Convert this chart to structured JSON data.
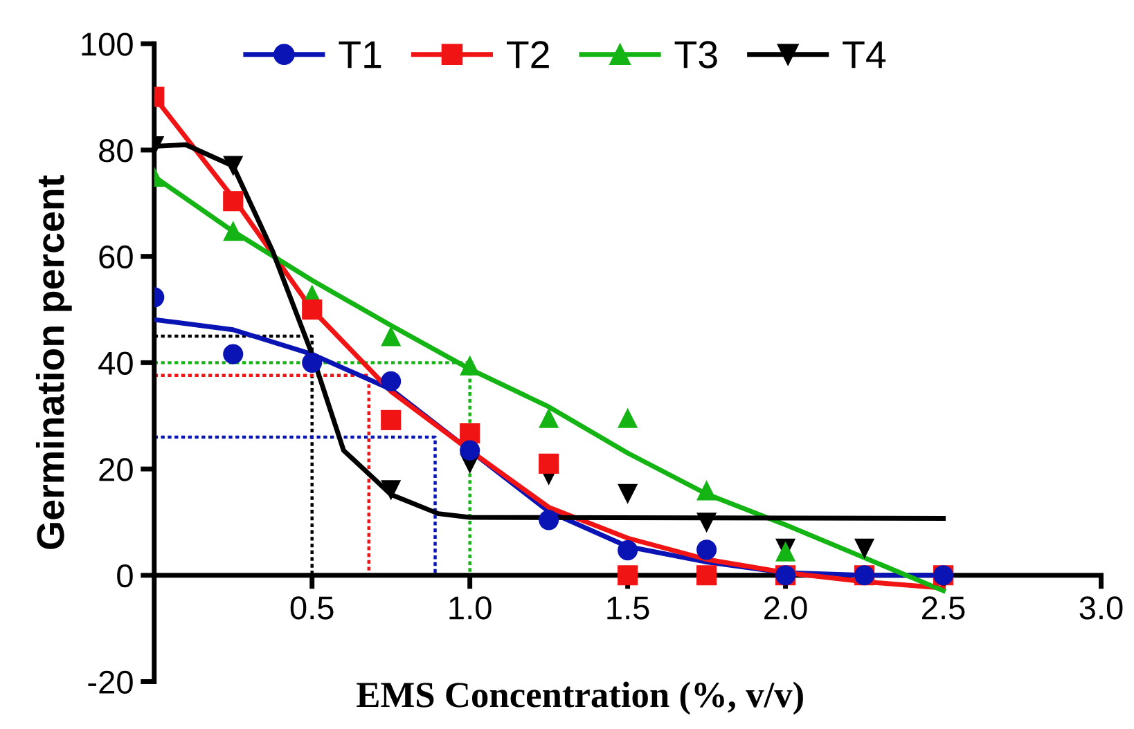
{
  "chart_data": {
    "type": "scatter",
    "xlabel": "EMS Concentration (%, v/v)",
    "ylabel": "Germination percent",
    "xlim": [
      0,
      3.0
    ],
    "ylim": [
      -20,
      100
    ],
    "xticks": [
      {
        "value": 0.5,
        "label": "0.5"
      },
      {
        "value": 1.0,
        "label": "1.0"
      },
      {
        "value": 1.5,
        "label": "1.5"
      },
      {
        "value": 2.0,
        "label": "2.0"
      },
      {
        "value": 2.5,
        "label": "2.5"
      },
      {
        "value": 3.0,
        "label": "3.0"
      }
    ],
    "yticks": [
      -20,
      0,
      20,
      40,
      60,
      80,
      100
    ],
    "grid": false,
    "legend": "top left",
    "series": [
      {
        "name": "T1",
        "marker": "circle",
        "color": "#0a14b4",
        "x": [
          0,
          0.25,
          0.5,
          0.75,
          1.0,
          1.25,
          1.5,
          1.75,
          2.0,
          2.25,
          2.5
        ],
        "values": [
          52.3,
          41.6,
          40,
          36.5,
          23.5,
          10.4,
          4.7,
          4.8,
          0,
          0,
          0
        ]
      },
      {
        "name": "T2",
        "marker": "square",
        "color": "#f01414",
        "x": [
          0,
          0.25,
          0.5,
          0.75,
          1.0,
          1.25,
          1.5,
          1.75,
          2.0,
          2.25,
          2.5
        ],
        "values": [
          90,
          70.4,
          50,
          29.2,
          26.7,
          21,
          0,
          0,
          0,
          0,
          0
        ]
      },
      {
        "name": "T3",
        "marker": "triangle",
        "color": "#14b414",
        "x": [
          0,
          0.25,
          0.5,
          0.75,
          1.0,
          1.25,
          1.5,
          1.75,
          2.0
        ],
        "values": [
          75,
          64.8,
          52.8,
          45,
          39.5,
          29.6,
          29.6,
          16,
          4.5
        ]
      },
      {
        "name": "T4",
        "marker": "triangle_down",
        "color": "#000000",
        "x": [
          0,
          0.25,
          0.75,
          1.0,
          1.25,
          1.5,
          1.75,
          2.0,
          2.25
        ],
        "values": [
          80.7,
          77,
          16,
          21,
          18.8,
          15.3,
          9.9,
          5,
          5
        ]
      },
      {
        "type": "line",
        "color": "#0a14b4",
        "x": [
          0,
          0.25,
          0.5,
          0.75,
          1.0,
          1.25,
          1.5,
          1.75,
          2.0,
          2.25,
          2.5
        ],
        "values": [
          48.1,
          46.2,
          41.6,
          35,
          23.5,
          12,
          5.4,
          2.5,
          0.5,
          0,
          0
        ]
      },
      {
        "type": "line",
        "color": "#f01414",
        "x": [
          0,
          0.25,
          0.5,
          0.75,
          1.0,
          1.25,
          1.5,
          1.75,
          2.0,
          2.25,
          2.5
        ],
        "values": [
          90,
          71,
          50,
          34.6,
          23.5,
          12.8,
          7,
          3,
          0.5,
          -1.2,
          -2.4
        ]
      },
      {
        "type": "line",
        "color": "#14b414",
        "x": [
          0,
          0.25,
          0.5,
          0.75,
          1.0,
          1.25,
          1.5,
          1.75,
          2.0,
          2.25,
          2.5
        ],
        "values": [
          75,
          64.7,
          55.5,
          47,
          38.8,
          31.7,
          23,
          15.3,
          9.5,
          3.3,
          -2.9
        ]
      },
      {
        "type": "line",
        "color": "#000000",
        "x": [
          0,
          0.1,
          0.25,
          0.375,
          0.5,
          0.6,
          0.75,
          0.9,
          1.0,
          2.5
        ],
        "values": [
          80.7,
          81,
          77,
          61,
          41.6,
          23.5,
          15.2,
          11.6,
          10.9,
          10.7
        ]
      },
      {
        "type": "line",
        "line_style": "dotted",
        "color": "#000000",
        "x": [
          0,
          0.5,
          0.5
        ],
        "values": [
          45,
          45,
          0
        ]
      },
      {
        "type": "line",
        "line_style": "dotted",
        "color": "#14b414",
        "x": [
          0,
          1.0,
          1.0
        ],
        "values": [
          40,
          40,
          0
        ]
      },
      {
        "type": "line",
        "line_style": "dotted",
        "color": "#f01414",
        "x": [
          0,
          0.68,
          0.68
        ],
        "values": [
          37.6,
          37.6,
          0
        ]
      },
      {
        "type": "line",
        "line_style": "dotted",
        "color": "#0a14b4",
        "x": [
          0,
          0.89,
          0.89
        ],
        "values": [
          26,
          26,
          0
        ]
      }
    ]
  }
}
